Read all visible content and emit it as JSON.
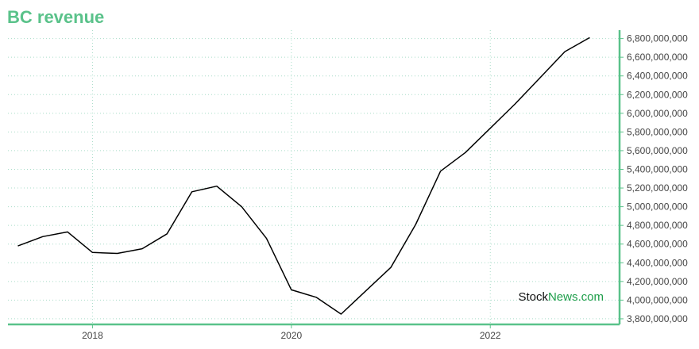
{
  "title": "BC revenue",
  "watermark": {
    "part1": "Stock",
    "part2": "News",
    "part3": ".com"
  },
  "colors": {
    "accent": "#5ac28a",
    "line": "#000000",
    "grid": "#a8dcc8",
    "watermark_dark": "#111111",
    "watermark_green": "#1e9e4a"
  },
  "chart_data": {
    "type": "line",
    "title": "BC revenue",
    "xlabel": "",
    "ylabel": "",
    "x_tick_labels": [
      "2018",
      "2020",
      "2022"
    ],
    "x_tick_values": [
      2018.0,
      2020.0,
      2022.0
    ],
    "xlim": [
      2017.15,
      2023.3
    ],
    "ylim": [
      3740000000,
      6890000000
    ],
    "y_ticks": [
      3800000000,
      4000000000,
      4200000000,
      4400000000,
      4600000000,
      4800000000,
      5000000000,
      5200000000,
      5400000000,
      5600000000,
      5800000000,
      6000000000,
      6200000000,
      6400000000,
      6600000000,
      6800000000
    ],
    "y_tick_labels": [
      "3,800,000,000",
      "4,000,000,000",
      "4,200,000,000",
      "4,400,000,000",
      "4,600,000,000",
      "4,800,000,000",
      "5,000,000,000",
      "5,200,000,000",
      "5,400,000,000",
      "5,600,000,000",
      "5,800,000,000",
      "6,000,000,000",
      "6,200,000,000",
      "6,400,000,000",
      "6,600,000,000",
      "6,800,000,000"
    ],
    "y_axis_side": "right",
    "grid": true,
    "legend": "none",
    "series": [
      {
        "x": [
          2017.25,
          2017.5,
          2017.75,
          2018.0,
          2018.25,
          2018.5,
          2018.75,
          2019.0,
          2019.25,
          2019.5,
          2019.75,
          2020.0,
          2020.25,
          2020.5,
          2020.75,
          2021.0,
          2021.25,
          2021.5,
          2021.75,
          2022.0,
          2022.25,
          2022.5,
          2022.75,
          2023.0
        ],
        "values": [
          4580000000,
          4680000000,
          4730000000,
          4510000000,
          4500000000,
          4550000000,
          4710000000,
          5160000000,
          5220000000,
          5000000000,
          4660000000,
          4110000000,
          4030000000,
          3850000000,
          4100000000,
          4350000000,
          4810000000,
          5380000000,
          5580000000,
          5840000000,
          6100000000,
          6380000000,
          6660000000,
          6810000000
        ]
      }
    ]
  }
}
